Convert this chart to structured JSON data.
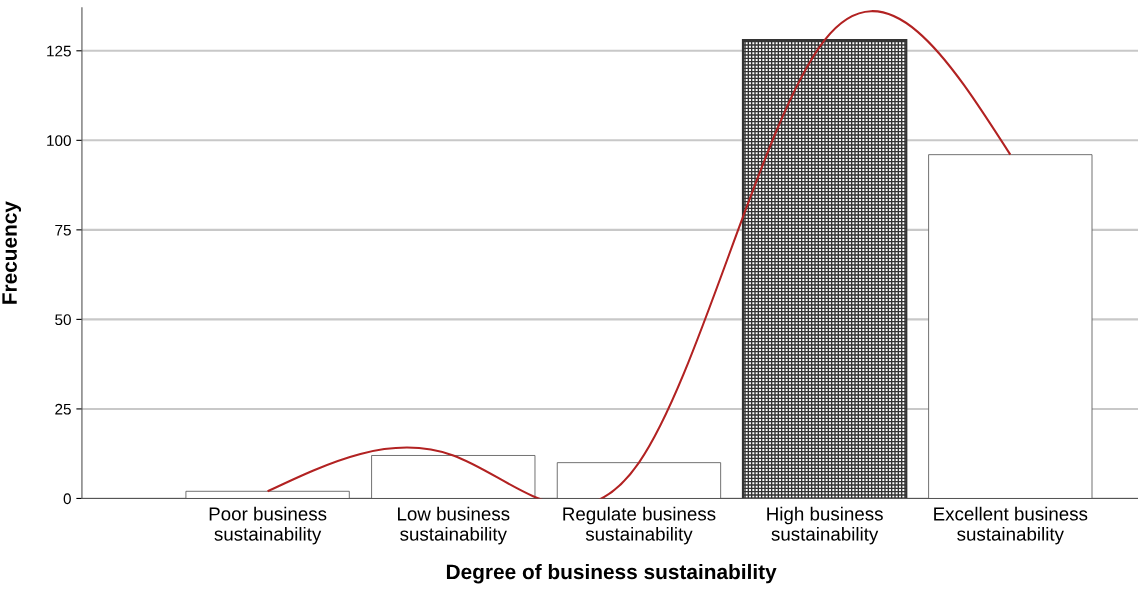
{
  "chart_data": {
    "type": "bar",
    "xlabel": "Degree of business sustainability",
    "ylabel": "Frecuency",
    "categories": [
      "Poor business\nsustainability",
      "Low business\nsustainability",
      "Regulate business\nsustainability",
      "High business\nsustainability",
      "Excellent business\nsustainability"
    ],
    "series": [
      {
        "type": "bar",
        "colors": [
          "#555555",
          "#555555",
          "#555555",
          "#333333",
          "#555555"
        ],
        "values": [
          2,
          12,
          10,
          128,
          96
        ]
      },
      {
        "type": "line",
        "color": "#b22222",
        "values": [
          2,
          12,
          10,
          128,
          96
        ]
      }
    ],
    "ylim": [
      0,
      137
    ],
    "yticks": [
      0,
      25,
      50,
      75,
      100,
      125
    ],
    "grid": "y",
    "legend": false
  }
}
